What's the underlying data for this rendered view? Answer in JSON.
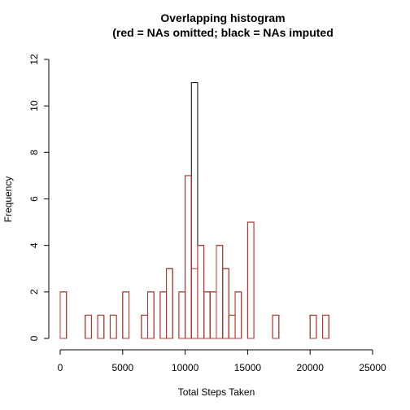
{
  "chart_data": {
    "type": "bar",
    "title_line1": "Overlapping histogram",
    "title_line2": "(red = NAs omitted; black = NAs imputed",
    "xlabel": "Total Steps Taken",
    "ylabel": "Frequency",
    "xlim": [
      0,
      25000
    ],
    "ylim": [
      0,
      12
    ],
    "x_ticks": [
      0,
      5000,
      10000,
      15000,
      20000,
      25000
    ],
    "y_ticks": [
      0,
      2,
      4,
      6,
      8,
      10,
      12
    ],
    "bin_width": 500,
    "bin_start": 0,
    "bin_end": 21500,
    "legend": "none",
    "grid": false,
    "series": [
      {
        "key": "imputed",
        "color": "#000000",
        "values": [
          2,
          0,
          0,
          0,
          1,
          0,
          1,
          0,
          1,
          0,
          2,
          0,
          0,
          1,
          2,
          0,
          2,
          3,
          0,
          2,
          7,
          11,
          4,
          2,
          2,
          4,
          3,
          1,
          2,
          0,
          5,
          0,
          0,
          0,
          1,
          0,
          0,
          0,
          0,
          0,
          1,
          0,
          1
        ]
      },
      {
        "key": "omitted",
        "color": "#c0392b",
        "values": [
          2,
          0,
          0,
          0,
          1,
          0,
          1,
          0,
          1,
          0,
          2,
          0,
          0,
          1,
          2,
          0,
          2,
          3,
          0,
          2,
          7,
          3,
          4,
          2,
          2,
          4,
          3,
          1,
          2,
          0,
          5,
          0,
          0,
          0,
          1,
          0,
          0,
          0,
          0,
          0,
          1,
          0,
          1
        ]
      }
    ]
  }
}
